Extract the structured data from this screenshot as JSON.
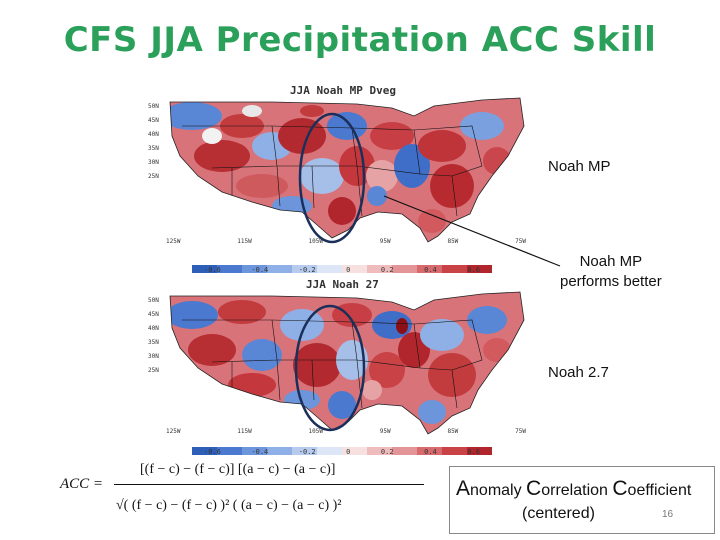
{
  "title": "CFS JJA Precipitation ACC Skill",
  "maps": [
    {
      "title": "JJA Noah MP Dveg",
      "lat_labels": [
        "50N",
        "45N",
        "40N",
        "35N",
        "30N",
        "25N"
      ],
      "lon_labels": [
        "125W",
        "115W",
        "105W",
        "95W",
        "85W",
        "75W"
      ],
      "colorbar_ticks": [
        "-0.6",
        "-0.4",
        "-0.2",
        "0",
        "0.2",
        "0.4",
        "0.6"
      ]
    },
    {
      "title": "JJA Noah 27",
      "lat_labels": [
        "50N",
        "45N",
        "40N",
        "35N",
        "30N",
        "25N"
      ],
      "lon_labels": [
        "125W",
        "115W",
        "105W",
        "95W",
        "85W",
        "75W"
      ],
      "colorbar_ticks": [
        "-0.6",
        "-0.4",
        "-0.2",
        "0",
        "0.2",
        "0.4",
        "0.6"
      ]
    }
  ],
  "labels": {
    "top_map": "Noah MP",
    "callout": [
      "Noah MP",
      "performs better"
    ],
    "bottom_map": "Noah 2.7"
  },
  "formula": {
    "lhs": "ACC =",
    "numerator": "[(f − c) − (f − c)] [(a − c) − (a − c)]",
    "denominator": "√( (f − c) − (f − c) )² ( (a − c) − (a − c) )²"
  },
  "acc_box": {
    "line1": [
      {
        "big": "A",
        "rest": "nomaly "
      },
      {
        "big": "C",
        "rest": "orrelation "
      },
      {
        "big": "C",
        "rest": "oefficient"
      }
    ],
    "line2": "(centered)",
    "page_number": "16"
  },
  "colors": {
    "title": "#2aa05a",
    "ellipse": "#1a2f5a",
    "positive": "#c0393b",
    "negative": "#3a6fc4"
  }
}
